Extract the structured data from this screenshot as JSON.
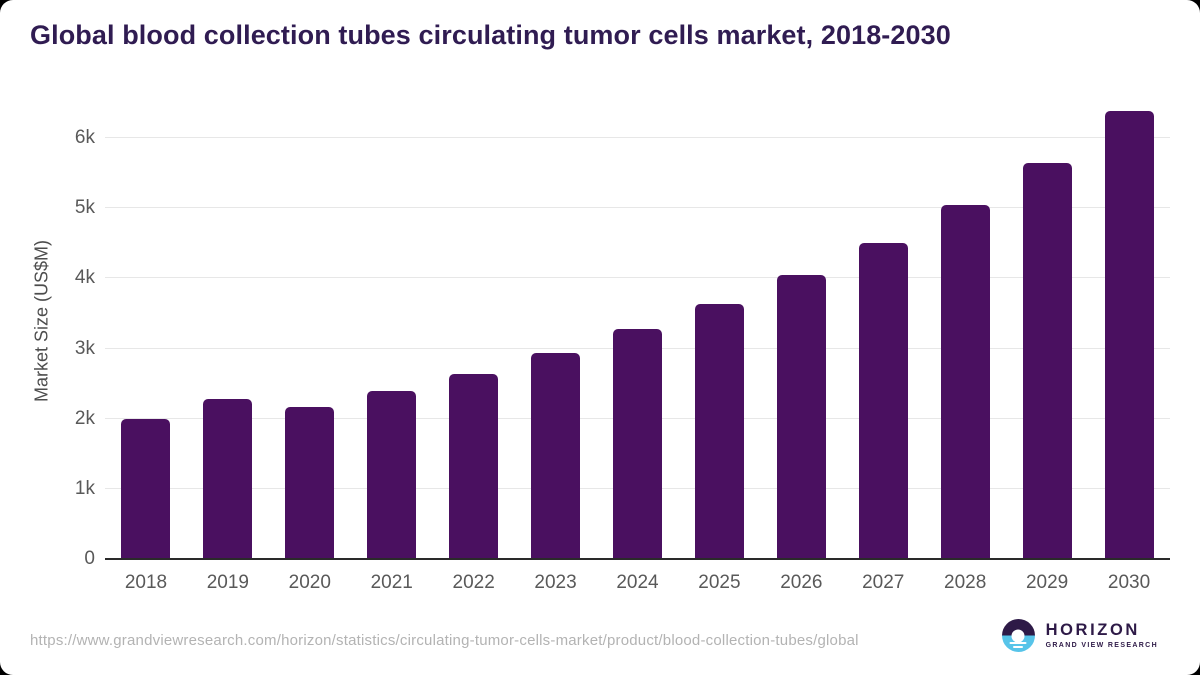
{
  "title": "Global blood collection tubes circulating tumor cells market, 2018-2030",
  "chart_data": {
    "type": "bar",
    "title": "Global blood collection tubes circulating tumor cells market, 2018-2030",
    "categories": [
      "2018",
      "2019",
      "2020",
      "2021",
      "2022",
      "2023",
      "2024",
      "2025",
      "2026",
      "2027",
      "2028",
      "2029",
      "2030"
    ],
    "values": [
      2000,
      2280,
      2170,
      2390,
      2640,
      2940,
      3280,
      3640,
      4050,
      4510,
      5050,
      5650,
      6380
    ],
    "xlabel": "",
    "ylabel": "Market Size (US$M)",
    "ylim": [
      0,
      6500
    ],
    "yticks": [
      {
        "value": 0,
        "label": "0"
      },
      {
        "value": 1000,
        "label": "1k"
      },
      {
        "value": 2000,
        "label": "2k"
      },
      {
        "value": 3000,
        "label": "3k"
      },
      {
        "value": 4000,
        "label": "4k"
      },
      {
        "value": 5000,
        "label": "5k"
      },
      {
        "value": 6000,
        "label": "6k"
      }
    ],
    "grid": true,
    "legend": false,
    "bar_color": "#4a1060"
  },
  "footer": {
    "source_url": "https://www.grandviewresearch.com/horizon/statistics/circulating-tumor-cells-market/product/blood-collection-tubes/global",
    "logo": {
      "title": "HORIZON",
      "subtitle": "GRAND VIEW RESEARCH"
    }
  },
  "colors": {
    "bar": "#4a1060",
    "title_text": "#301c52",
    "axis_text": "#595959",
    "gridline": "#e7e7e7",
    "axis_line": "#2a2a2a",
    "url_text": "#b3b3b3",
    "logo_purple": "#2e1a47",
    "logo_blue": "#57c4e9",
    "card_background": "#ffffff",
    "page_background": "#000000"
  }
}
